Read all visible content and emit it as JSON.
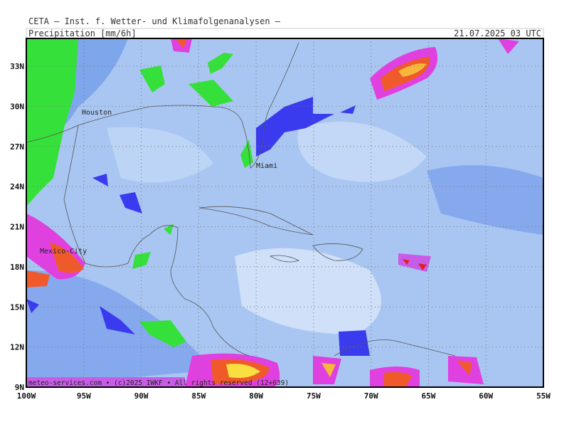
{
  "header": {
    "source": "CETA — Inst. f. Wetter- und Klimafolgenanalysen —",
    "product": "Precipitation [mm/6h]",
    "time": "21.07.2025 03 UTC"
  },
  "map": {
    "lat_labels": [
      "33N",
      "30N",
      "27N",
      "24N",
      "21N",
      "18N",
      "15N",
      "12N",
      "9N"
    ],
    "lon_labels": [
      "100W",
      "95W",
      "90W",
      "85W",
      "80W",
      "75W",
      "70W",
      "65W",
      "60W",
      "55W"
    ],
    "cities": [
      "Houston",
      "Miami",
      "Mexico-City"
    ],
    "footer": "meteo-services.com • (c)2025 IWKF • All rights reserved (12+039)"
  }
}
